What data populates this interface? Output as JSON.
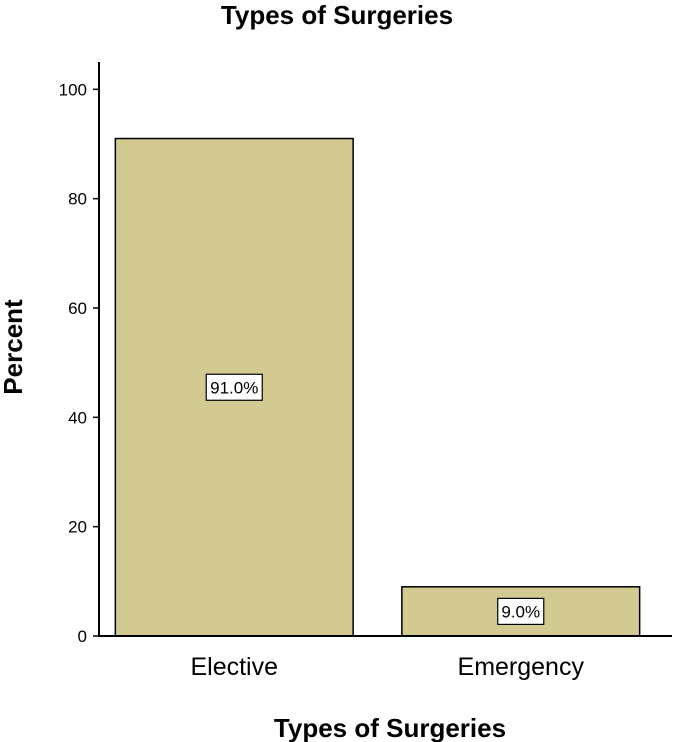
{
  "chart_data": {
    "type": "bar",
    "title": "Types of Surgeries",
    "xlabel": "Types of Surgeries",
    "ylabel": "Percent",
    "categories": [
      "Elective",
      "Emergency"
    ],
    "values": [
      91.0,
      9.0
    ],
    "data_labels": [
      "91.0%",
      "9.0%"
    ],
    "ylim": [
      0,
      105
    ],
    "yticks": [
      0,
      20,
      40,
      60,
      80,
      100
    ],
    "grid": false,
    "legend": "none",
    "bar_color": "#D2CA90",
    "bar_edge_color": "#000000"
  }
}
